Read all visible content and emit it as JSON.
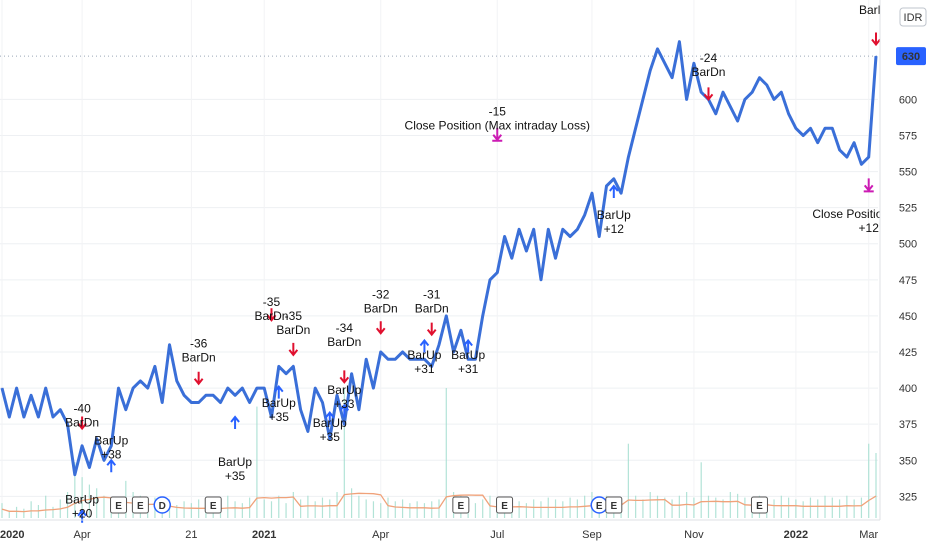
{
  "chart_data": {
    "type": "line",
    "currency_label": "IDR",
    "last_price_label": "630",
    "y_ticks": [
      325,
      350,
      375,
      400,
      425,
      450,
      475,
      500,
      525,
      550,
      575,
      600,
      630
    ],
    "x_tick_labels": [
      "2020",
      "Apr",
      "21",
      "2021",
      "Apr",
      "Jul",
      "Sep",
      "Nov",
      "2022",
      "Mar"
    ],
    "ylim": [
      310,
      655
    ],
    "x_index": [
      0,
      1,
      2,
      3,
      4,
      5,
      6,
      7,
      8,
      9,
      10,
      11,
      12,
      13,
      14,
      15,
      16,
      17,
      18,
      19,
      20,
      21,
      22,
      23,
      24,
      25,
      26,
      27,
      28,
      29,
      30,
      31,
      32,
      33,
      34,
      35,
      36,
      37,
      38,
      39,
      40,
      41,
      42,
      43,
      44,
      45,
      46,
      47,
      48,
      49,
      50,
      51,
      52,
      53,
      54,
      55,
      56,
      57,
      58,
      59,
      60,
      61,
      62,
      63,
      64,
      65,
      66,
      67,
      68,
      69,
      70,
      71,
      72,
      73,
      74,
      75,
      76,
      77,
      78,
      79,
      80,
      81,
      82,
      83,
      84,
      85,
      86,
      87,
      88,
      89,
      90,
      91,
      92,
      93,
      94,
      95,
      96,
      97,
      98,
      99,
      100,
      101,
      102,
      103,
      104,
      105,
      106,
      107,
      108,
      109,
      110,
      111,
      112,
      113,
      114,
      115,
      116,
      117,
      118,
      119,
      120
    ],
    "series": [
      {
        "values": [
          400,
          380,
          400,
          380,
          395,
          380,
          400,
          380,
          385,
          375,
          340,
          360,
          345,
          365,
          350,
          360,
          400,
          385,
          400,
          405,
          400,
          415,
          390,
          430,
          405,
          395,
          390,
          390,
          395,
          395,
          390,
          400,
          395,
          400,
          390,
          400,
          400,
          380,
          415,
          410,
          415,
          385,
          370,
          400,
          390,
          365,
          395,
          375,
          410,
          385,
          420,
          400,
          425,
          420,
          420,
          425,
          420,
          420,
          420,
          415,
          430,
          450,
          425,
          440,
          420,
          420,
          450,
          475,
          480,
          505,
          490,
          510,
          495,
          510,
          475,
          510,
          490,
          510,
          505,
          510,
          520,
          535,
          505,
          540,
          545,
          535,
          560,
          580,
          600,
          620,
          635,
          625,
          615,
          640,
          600,
          625,
          605,
          600,
          590,
          605,
          595,
          585,
          600,
          605,
          615,
          610,
          600,
          605,
          590,
          580,
          575,
          580,
          570,
          580,
          580,
          565,
          560,
          570,
          555,
          560,
          630
        ],
        "color": "#3a6fd8"
      }
    ],
    "volume": [
      8,
      4,
      6,
      5,
      9,
      7,
      12,
      6,
      10,
      14,
      30,
      22,
      18,
      16,
      12,
      10,
      8,
      20,
      14,
      12,
      9,
      11,
      8,
      10,
      7,
      9,
      8,
      10,
      8,
      9,
      7,
      12,
      9,
      8,
      11,
      60,
      10,
      9,
      12,
      8,
      14,
      10,
      12,
      9,
      11,
      10,
      14,
      70,
      16,
      12,
      10,
      9,
      8,
      11,
      9,
      10,
      8,
      9,
      8,
      9,
      10,
      70,
      14,
      12,
      9,
      8,
      10,
      12,
      9,
      11,
      10,
      9,
      8,
      10,
      9,
      11,
      10,
      9,
      11,
      10,
      12,
      14,
      10,
      12,
      11,
      10,
      40,
      12,
      10,
      14,
      12,
      11,
      10,
      12,
      14,
      11,
      30,
      12,
      11,
      10,
      14,
      13,
      11,
      10,
      12,
      11,
      10,
      12,
      11,
      10,
      9,
      11,
      10,
      12,
      11,
      10,
      12,
      10,
      11,
      40,
      35
    ],
    "annotations": [
      {
        "lines": [
          "-40",
          "BarDn"
        ],
        "kind": "short",
        "i": 11,
        "text_price": 383,
        "marker_price": 372
      },
      {
        "lines": [
          "BarUp",
          "+38"
        ],
        "kind": "long",
        "i": 15,
        "text_price": 361,
        "marker_price": 350
      },
      {
        "lines": [
          "BarUp",
          "+20"
        ],
        "kind": "long",
        "i": 11,
        "text_price": 320,
        "marker_price": 315
      },
      {
        "lines": [
          "-36",
          "BarDn"
        ],
        "kind": "short",
        "i": 27,
        "text_price": 428,
        "marker_price": 403
      },
      {
        "lines": [
          "BarUp",
          "+35"
        ],
        "kind": "long",
        "i": 32,
        "text_price": 346,
        "marker_price": 380
      },
      {
        "lines": [
          "-35",
          "BarDn"
        ],
        "kind": "short",
        "i": 37,
        "text_price": 457,
        "marker_price": 447
      },
      {
        "lines": [
          "-35",
          "BarDn"
        ],
        "kind": "short",
        "i": 40,
        "text_price": 447,
        "marker_price": 423
      },
      {
        "lines": [
          "BarUp",
          "+35"
        ],
        "kind": "long",
        "i": 38,
        "text_price": 387,
        "marker_price": 401
      },
      {
        "lines": [
          "-34",
          "BarDn"
        ],
        "kind": "short",
        "i": 47,
        "text_price": 439,
        "marker_price": 404
      },
      {
        "lines": [
          "BarUp",
          "+33"
        ],
        "kind": "long",
        "i": 47,
        "text_price": 396,
        "marker_price": 388
      },
      {
        "lines": [
          "BarUp",
          "+35"
        ],
        "kind": "long",
        "i": 45,
        "text_price": 373,
        "marker_price": 383
      },
      {
        "lines": [
          "-32",
          "BarDn"
        ],
        "kind": "short",
        "i": 52,
        "text_price": 462,
        "marker_price": 438
      },
      {
        "lines": [
          "-31",
          "BarDn"
        ],
        "kind": "short",
        "i": 59,
        "text_price": 462,
        "marker_price": 437
      },
      {
        "lines": [
          "BarUp",
          "+31"
        ],
        "kind": "long",
        "i": 58,
        "text_price": 420,
        "marker_price": 433
      },
      {
        "lines": [
          "BarUp",
          "+31"
        ],
        "kind": "long",
        "i": 64,
        "text_price": 420,
        "marker_price": 433
      },
      {
        "lines": [
          "-15",
          "Close Position (Max intraday Loss)"
        ],
        "kind": "exit",
        "i": 68,
        "text_price": 589,
        "marker_price": 572
      },
      {
        "lines": [
          "BarUp",
          "+12"
        ],
        "kind": "long",
        "i": 84,
        "text_price": 517,
        "marker_price": 540
      },
      {
        "lines": [
          "-24",
          "BarDn"
        ],
        "kind": "short",
        "i": 97,
        "text_price": 626,
        "marker_price": 600
      },
      {
        "lines": [
          "Close Position (Max i",
          "+12"
        ],
        "kind": "exit_bottom",
        "i": 119,
        "text_price": 518,
        "marker_price": 537
      },
      {
        "lines": [
          "BarDn"
        ],
        "kind": "short_top",
        "i": 120,
        "text_price": 659,
        "marker_price": 638
      }
    ],
    "event_badges": [
      {
        "letter": "E",
        "i": 16,
        "round": false
      },
      {
        "letter": "E",
        "i": 19,
        "round": false
      },
      {
        "letter": "D",
        "i": 22,
        "round": true
      },
      {
        "letter": "E",
        "i": 29,
        "round": false
      },
      {
        "letter": "E",
        "i": 63,
        "round": false
      },
      {
        "letter": "E",
        "i": 69,
        "round": false
      },
      {
        "letter": "E",
        "i": 82,
        "round": true
      },
      {
        "letter": "E",
        "i": 84,
        "round": false
      },
      {
        "letter": "E",
        "i": 104,
        "round": false
      }
    ]
  }
}
